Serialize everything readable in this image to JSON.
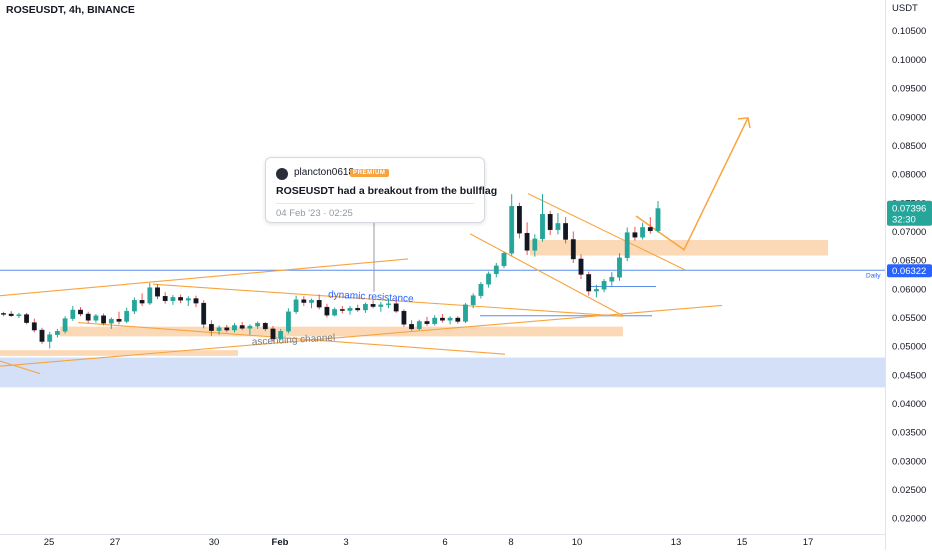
{
  "header": {
    "title": "ROSEUSDT, 4h, BINANCE"
  },
  "tooltip": {
    "username": "plancton0618",
    "badge": "PREMIUM",
    "headline": "ROSEUSDT had a breakout from the bullflag",
    "date": "04 Feb '23 · 02:25"
  },
  "colors": {
    "up": "#26a69a",
    "down": "#ef5350",
    "candle_body": "#131722",
    "drawing": "#f7a440",
    "zone_fill": "#fcd9b6",
    "support_fill": "#d3e0f7",
    "hline": "#5b8def",
    "price_label_bg": "#26a69a",
    "daily_label_bg": "#2962ff"
  },
  "chart_data": {
    "type": "candlestick",
    "symbol": "ROSEUSDT",
    "timeframe": "4h",
    "exchange": "BINANCE",
    "y_axis": {
      "label": "USDT",
      "ticks": [
        "0.10500",
        "0.10000",
        "0.09500",
        "0.09000",
        "0.08500",
        "0.08000",
        "0.07500",
        "0.07000",
        "0.06500",
        "0.06000",
        "0.05500",
        "0.05000",
        "0.04500",
        "0.04000",
        "0.03500",
        "0.03000",
        "0.02500",
        "0.02000"
      ],
      "range": [
        0.0195,
        0.1067
      ]
    },
    "x_axis": {
      "ticks": [
        "25",
        "27",
        "30",
        "Feb",
        "3",
        "6",
        "8",
        "10",
        "13",
        "15",
        "17"
      ]
    },
    "last_price": {
      "value": "0.07396",
      "countdown": "32:30"
    },
    "daily_level": {
      "label": "Daily",
      "value": "0.06322"
    },
    "annotations": [
      {
        "type": "text",
        "text": "dynamic resistance"
      },
      {
        "type": "text",
        "text": "ascending channel"
      }
    ],
    "candles": [
      [
        0.0557,
        0.056,
        0.0552,
        0.0556
      ],
      [
        0.0556,
        0.0561,
        0.0551,
        0.0553
      ],
      [
        0.0553,
        0.0558,
        0.0549,
        0.0555
      ],
      [
        0.0555,
        0.0558,
        0.0538,
        0.0541
      ],
      [
        0.0541,
        0.0548,
        0.0524,
        0.0528
      ],
      [
        0.0528,
        0.0532,
        0.0504,
        0.0508
      ],
      [
        0.0508,
        0.0525,
        0.0496,
        0.052
      ],
      [
        0.052,
        0.053,
        0.0515,
        0.0526
      ],
      [
        0.0526,
        0.0552,
        0.0522,
        0.0548
      ],
      [
        0.0548,
        0.057,
        0.0544,
        0.0563
      ],
      [
        0.0563,
        0.0568,
        0.0552,
        0.0556
      ],
      [
        0.0556,
        0.056,
        0.054,
        0.0545
      ],
      [
        0.0545,
        0.0556,
        0.0541,
        0.0553
      ],
      [
        0.0553,
        0.0557,
        0.0536,
        0.054
      ],
      [
        0.054,
        0.055,
        0.053,
        0.0547
      ],
      [
        0.0547,
        0.056,
        0.0538,
        0.0543
      ],
      [
        0.0543,
        0.0567,
        0.054,
        0.0561
      ],
      [
        0.0561,
        0.0585,
        0.0556,
        0.058
      ],
      [
        0.058,
        0.0592,
        0.057,
        0.0575
      ],
      [
        0.0575,
        0.061,
        0.0572,
        0.0602
      ],
      [
        0.0602,
        0.0608,
        0.0582,
        0.0587
      ],
      [
        0.0587,
        0.0594,
        0.0574,
        0.0579
      ],
      [
        0.0579,
        0.0589,
        0.0572,
        0.0585
      ],
      [
        0.0585,
        0.059,
        0.0575,
        0.058
      ],
      [
        0.058,
        0.0587,
        0.057,
        0.0583
      ],
      [
        0.0583,
        0.0588,
        0.0568,
        0.0575
      ],
      [
        0.0575,
        0.058,
        0.0531,
        0.0538
      ],
      [
        0.0538,
        0.0545,
        0.0518,
        0.0527
      ],
      [
        0.0527,
        0.0536,
        0.052,
        0.0532
      ],
      [
        0.0532,
        0.0537,
        0.0524,
        0.0528
      ],
      [
        0.0528,
        0.054,
        0.0524,
        0.0536
      ],
      [
        0.0536,
        0.0542,
        0.0528,
        0.0531
      ],
      [
        0.0531,
        0.0538,
        0.052,
        0.0535
      ],
      [
        0.0535,
        0.0543,
        0.053,
        0.054
      ],
      [
        0.054,
        0.0542,
        0.0526,
        0.053
      ],
      [
        0.053,
        0.0535,
        0.0508,
        0.0513
      ],
      [
        0.0513,
        0.053,
        0.051,
        0.0526
      ],
      [
        0.0526,
        0.0566,
        0.0522,
        0.056
      ],
      [
        0.056,
        0.0588,
        0.0556,
        0.0581
      ],
      [
        0.0581,
        0.0587,
        0.057,
        0.0576
      ],
      [
        0.0576,
        0.0583,
        0.0566,
        0.058
      ],
      [
        0.058,
        0.059,
        0.0564,
        0.0568
      ],
      [
        0.0568,
        0.0574,
        0.055,
        0.0554
      ],
      [
        0.0554,
        0.0567,
        0.0552,
        0.0564
      ],
      [
        0.0564,
        0.057,
        0.0557,
        0.0562
      ],
      [
        0.0562,
        0.057,
        0.0555,
        0.0566
      ],
      [
        0.0566,
        0.0572,
        0.056,
        0.0563
      ],
      [
        0.0563,
        0.0576,
        0.0558,
        0.0573
      ],
      [
        0.0573,
        0.058,
        0.0566,
        0.0569
      ],
      [
        0.0569,
        0.0577,
        0.056,
        0.0572
      ],
      [
        0.0572,
        0.0583,
        0.0566,
        0.0574
      ],
      [
        0.0574,
        0.058,
        0.0558,
        0.0561
      ],
      [
        0.0561,
        0.0564,
        0.0534,
        0.0538
      ],
      [
        0.0538,
        0.0545,
        0.0527,
        0.053
      ],
      [
        0.053,
        0.0546,
        0.0528,
        0.0543
      ],
      [
        0.0543,
        0.0551,
        0.0535,
        0.0539
      ],
      [
        0.0539,
        0.0554,
        0.0536,
        0.0549
      ],
      [
        0.0549,
        0.0556,
        0.0541,
        0.0545
      ],
      [
        0.0545,
        0.0552,
        0.0538,
        0.0549
      ],
      [
        0.0549,
        0.0552,
        0.0539,
        0.0543
      ],
      [
        0.0543,
        0.0575,
        0.054,
        0.0572
      ],
      [
        0.0572,
        0.0592,
        0.0566,
        0.0588
      ],
      [
        0.0588,
        0.0612,
        0.0583,
        0.0608
      ],
      [
        0.0608,
        0.063,
        0.0602,
        0.0626
      ],
      [
        0.0626,
        0.0645,
        0.062,
        0.064
      ],
      [
        0.064,
        0.0665,
        0.0636,
        0.0662
      ],
      [
        0.0662,
        0.0765,
        0.0658,
        0.0744
      ],
      [
        0.0744,
        0.075,
        0.0688,
        0.0697
      ],
      [
        0.0697,
        0.0716,
        0.0659,
        0.0667
      ],
      [
        0.0667,
        0.0695,
        0.0656,
        0.0687
      ],
      [
        0.0687,
        0.0765,
        0.0682,
        0.073
      ],
      [
        0.073,
        0.0736,
        0.0694,
        0.0703
      ],
      [
        0.0703,
        0.0732,
        0.0695,
        0.0714
      ],
      [
        0.0714,
        0.0725,
        0.0679,
        0.0686
      ],
      [
        0.0686,
        0.07,
        0.0645,
        0.0652
      ],
      [
        0.0652,
        0.066,
        0.0617,
        0.0625
      ],
      [
        0.0625,
        0.063,
        0.0588,
        0.0596
      ],
      [
        0.0596,
        0.0607,
        0.0585,
        0.0599
      ],
      [
        0.0599,
        0.0617,
        0.0594,
        0.0613
      ],
      [
        0.0613,
        0.0629,
        0.0605,
        0.062
      ],
      [
        0.062,
        0.0662,
        0.0614,
        0.0654
      ],
      [
        0.0654,
        0.0707,
        0.0648,
        0.0698
      ],
      [
        0.0698,
        0.0708,
        0.0684,
        0.069
      ],
      [
        0.069,
        0.0715,
        0.0686,
        0.0707
      ],
      [
        0.0707,
        0.0725,
        0.0696,
        0.0701
      ],
      [
        0.0701,
        0.0753,
        0.0698,
        0.074
      ]
    ]
  }
}
